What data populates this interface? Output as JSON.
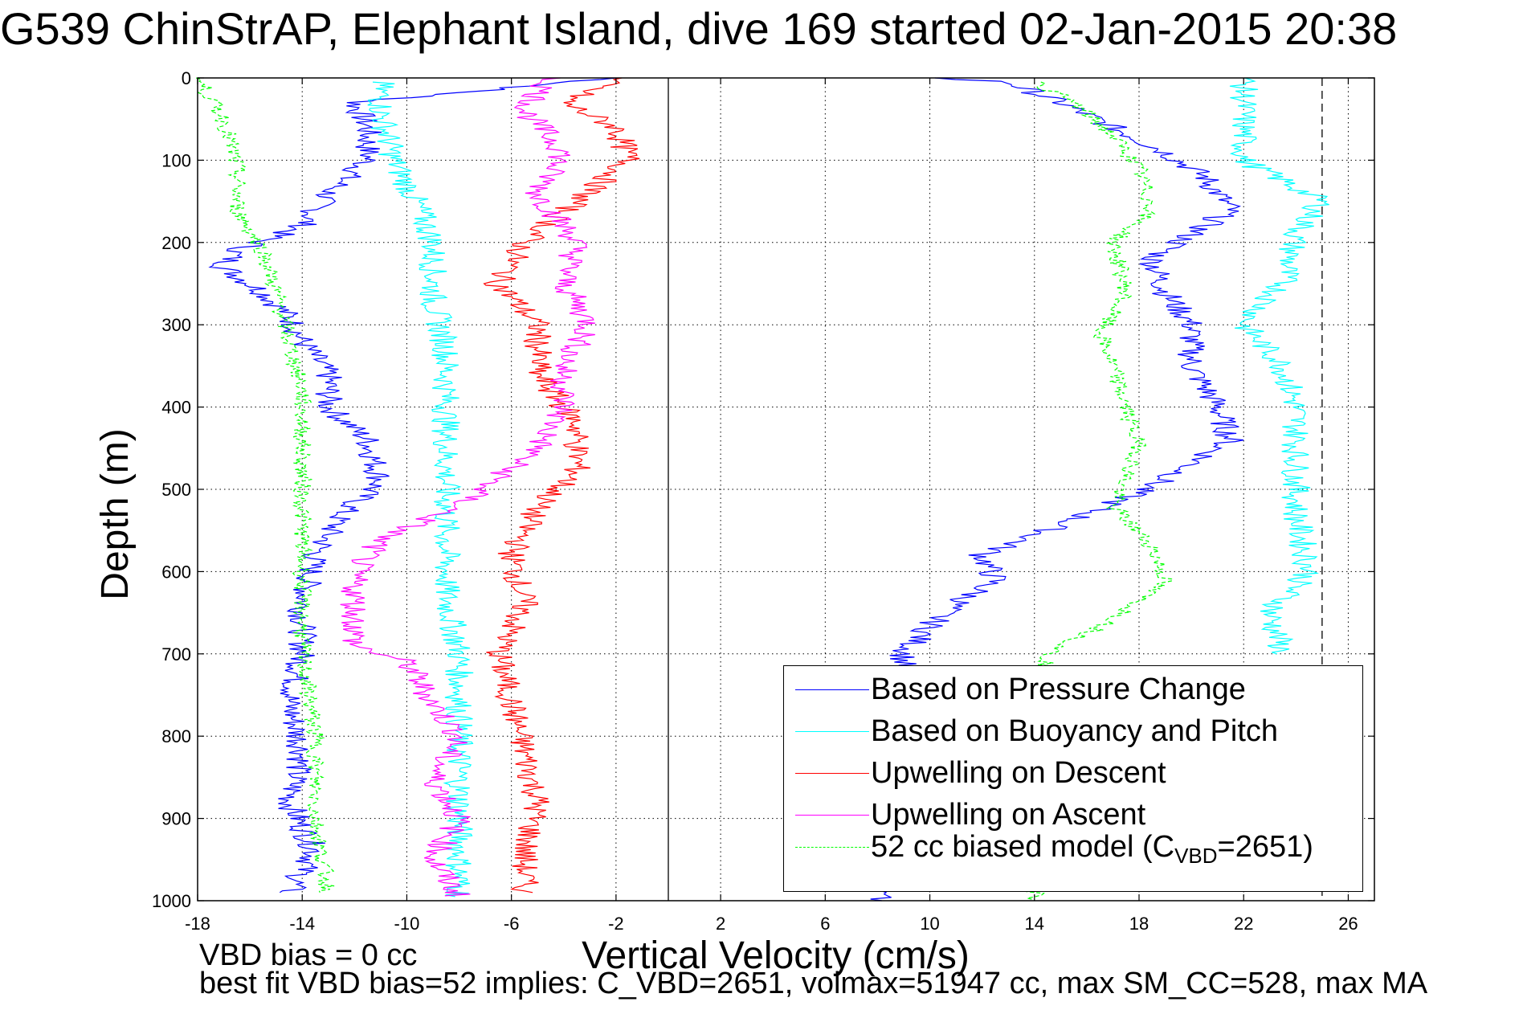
{
  "figure": {
    "title": "G539 ChinStrAP, Elephant Island, dive 169 started 02-Jan-2015 20:38",
    "note_line1": "VBD bias = 0 cc",
    "note_line2": "best fit VBD bias=52 implies: C_VBD=2651, volmax=51947 cc, max SM_CC=528, max MA"
  },
  "chart_data": {
    "type": "line",
    "title": "G539 ChinStrAP, Elephant Island, dive 169 started 02-Jan-2015 20:38",
    "xlabel": "Vertical Velocity (cm/s)",
    "ylabel": "Depth (m)",
    "xlim": [
      -18,
      27
    ],
    "ylim": [
      1000,
      0
    ],
    "y_reversed": true,
    "x_ticks": [
      -18,
      -14,
      -10,
      -6,
      -2,
      2,
      6,
      10,
      14,
      18,
      22,
      26
    ],
    "y_ticks": [
      0,
      100,
      200,
      300,
      400,
      500,
      600,
      700,
      800,
      900,
      1000
    ],
    "grid": true,
    "legend_position": "bottom-right",
    "reference_lines": [
      {
        "x": 0,
        "style": "solid",
        "color": "#000000"
      },
      {
        "x": 25,
        "style": "dashed",
        "color": "#000000"
      }
    ],
    "series": [
      {
        "name": "Based on Pressure Change",
        "color": "#0000ff",
        "style": "solid",
        "part": "descent",
        "points": [
          [
            -2,
            0
          ],
          [
            -12,
            30
          ],
          [
            -11.5,
            60
          ],
          [
            -11.5,
            100
          ],
          [
            -13,
            140
          ],
          [
            -14,
            180
          ],
          [
            -16.5,
            210
          ],
          [
            -17,
            230
          ],
          [
            -15.5,
            260
          ],
          [
            -14.5,
            290
          ],
          [
            -14,
            320
          ],
          [
            -13,
            360
          ],
          [
            -13,
            400
          ],
          [
            -11.5,
            440
          ],
          [
            -11,
            490
          ],
          [
            -12.5,
            530
          ],
          [
            -13.5,
            580
          ],
          [
            -14,
            640
          ],
          [
            -14,
            700
          ],
          [
            -14.5,
            760
          ],
          [
            -14,
            820
          ],
          [
            -14.5,
            880
          ],
          [
            -13.5,
            940
          ],
          [
            -14.5,
            990
          ]
        ]
      },
      {
        "name": "Based on Pressure Change",
        "color": "#0000ff",
        "style": "solid",
        "part": "ascent",
        "points": [
          [
            8,
            1000
          ],
          [
            9,
            700
          ],
          [
            10.5,
            650
          ],
          [
            12.5,
            610
          ],
          [
            12,
            580
          ],
          [
            14.5,
            550
          ],
          [
            17.5,
            510
          ],
          [
            19.5,
            480
          ],
          [
            21.5,
            440
          ],
          [
            21,
            400
          ],
          [
            20,
            350
          ],
          [
            20,
            300
          ],
          [
            19,
            260
          ],
          [
            18.5,
            220
          ],
          [
            21.5,
            160
          ],
          [
            20.5,
            120
          ],
          [
            19,
            90
          ],
          [
            17,
            60
          ],
          [
            15,
            30
          ],
          [
            13,
            5
          ],
          [
            10,
            0
          ]
        ]
      },
      {
        "name": "Based on Buoyancy and Pitch",
        "color": "#00ffff",
        "style": "solid",
        "part": "descent",
        "points": [
          [
            -11,
            5
          ],
          [
            -11,
            40
          ],
          [
            -10.5,
            100
          ],
          [
            -9.5,
            160
          ],
          [
            -9,
            200
          ],
          [
            -9,
            270
          ],
          [
            -8.5,
            330
          ],
          [
            -8.5,
            400
          ],
          [
            -8.5,
            480
          ],
          [
            -8.5,
            550
          ],
          [
            -8.5,
            630
          ],
          [
            -8,
            700
          ],
          [
            -8,
            800
          ],
          [
            -8,
            900
          ],
          [
            -8,
            995
          ]
        ]
      },
      {
        "name": "Based on Buoyancy and Pitch",
        "color": "#00ffff",
        "style": "solid",
        "part": "ascent",
        "points": [
          [
            22,
            0
          ],
          [
            22,
            100
          ],
          [
            25,
            150
          ],
          [
            24,
            190
          ],
          [
            23.5,
            250
          ],
          [
            22,
            300
          ],
          [
            23.5,
            350
          ],
          [
            24,
            400
          ],
          [
            24,
            460
          ],
          [
            24,
            530
          ],
          [
            24.5,
            600
          ],
          [
            23,
            650
          ],
          [
            23.5,
            700
          ]
        ]
      },
      {
        "name": "Upwelling on Descent",
        "color": "#ff0000",
        "style": "solid",
        "points": [
          [
            -2,
            0
          ],
          [
            -4,
            30
          ],
          [
            -2,
            60
          ],
          [
            -1.5,
            100
          ],
          [
            -3.5,
            150
          ],
          [
            -5.5,
            200
          ],
          [
            -6.5,
            250
          ],
          [
            -5,
            300
          ],
          [
            -5,
            360
          ],
          [
            -3.5,
            420
          ],
          [
            -3.5,
            480
          ],
          [
            -5,
            520
          ],
          [
            -6,
            580
          ],
          [
            -5.5,
            640
          ],
          [
            -6.5,
            700
          ],
          [
            -6,
            760
          ],
          [
            -5.5,
            820
          ],
          [
            -5,
            880
          ],
          [
            -5.5,
            940
          ],
          [
            -5.5,
            990
          ]
        ]
      },
      {
        "name": "Upwelling on Ascent",
        "color": "#ff00ff",
        "style": "solid",
        "points": [
          [
            -4.5,
            0
          ],
          [
            -5.5,
            40
          ],
          [
            -4,
            90
          ],
          [
            -5,
            140
          ],
          [
            -3.5,
            200
          ],
          [
            -4,
            250
          ],
          [
            -3,
            300
          ],
          [
            -4,
            350
          ],
          [
            -4,
            400
          ],
          [
            -5,
            450
          ],
          [
            -8,
            520
          ],
          [
            -11,
            560
          ],
          [
            -12,
            600
          ],
          [
            -12,
            650
          ],
          [
            -12,
            690
          ],
          [
            -10,
            710
          ],
          [
            -9,
            760
          ],
          [
            -8,
            800
          ],
          [
            -9,
            850
          ],
          [
            -8,
            900
          ],
          [
            -9,
            950
          ],
          [
            -8,
            995
          ]
        ]
      },
      {
        "name": "52 cc biased model (C",
        "name_sub": "VBD",
        "name_suffix": "=2651)",
        "color": "#00ff00",
        "style": "dashed",
        "part": "descent",
        "points": [
          [
            -18,
            0
          ],
          [
            -17,
            50
          ],
          [
            -16.5,
            110
          ],
          [
            -16.5,
            160
          ],
          [
            -15.5,
            210
          ],
          [
            -15,
            260
          ],
          [
            -14.5,
            320
          ],
          [
            -14,
            380
          ],
          [
            -14,
            440
          ],
          [
            -14,
            520
          ],
          [
            -14,
            600
          ],
          [
            -14,
            700
          ],
          [
            -13.5,
            800
          ],
          [
            -13.5,
            900
          ],
          [
            -13,
            990
          ]
        ]
      },
      {
        "name": "52 cc biased model (C",
        "name_sub": "VBD",
        "name_suffix": "=2651)",
        "color": "#00ff00",
        "style": "dashed",
        "part": "ascent",
        "points": [
          [
            14,
            5
          ],
          [
            15.5,
            30
          ],
          [
            17,
            70
          ],
          [
            18,
            110
          ],
          [
            18.5,
            160
          ],
          [
            17,
            200
          ],
          [
            17.5,
            260
          ],
          [
            16.5,
            310
          ],
          [
            17,
            350
          ],
          [
            17.5,
            400
          ],
          [
            18,
            450
          ],
          [
            17,
            520
          ],
          [
            18.5,
            570
          ],
          [
            19,
            610
          ],
          [
            17,
            660
          ],
          [
            14.5,
            700
          ],
          [
            14,
            1000
          ]
        ]
      }
    ],
    "legend": [
      {
        "label": "Based on Pressure Change",
        "color": "#0000ff",
        "style": "solid"
      },
      {
        "label": "Based on Buoyancy and Pitch",
        "color": "#00ffff",
        "style": "solid"
      },
      {
        "label": "Upwelling on Descent",
        "color": "#ff0000",
        "style": "solid"
      },
      {
        "label": "Upwelling on Ascent",
        "color": "#ff00ff",
        "style": "solid"
      },
      {
        "label": "52 cc biased model (C",
        "sub": "VBD",
        "suffix": "=2651)",
        "color": "#00ff00",
        "style": "dashed"
      }
    ]
  }
}
